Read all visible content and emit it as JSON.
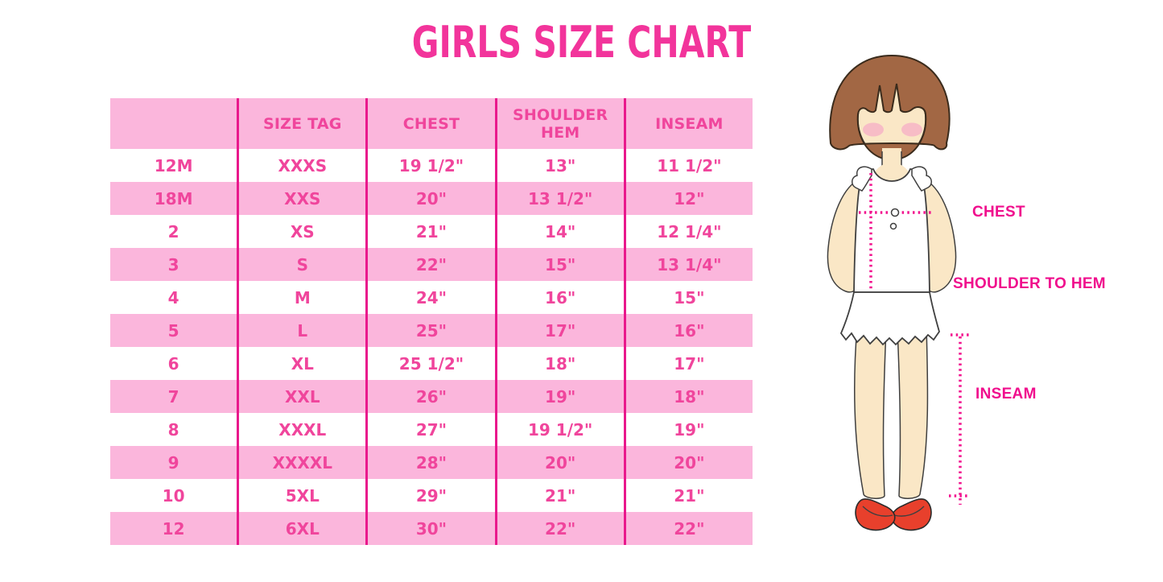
{
  "title": "GIRLS SIZE CHART",
  "chart_data": {
    "type": "table",
    "title": "GIRLS SIZE CHART",
    "columns": [
      "",
      "SIZE TAG",
      "CHEST",
      "SHOULDER HEM",
      "INSEAM"
    ],
    "rows": [
      [
        "12M",
        "XXXS",
        "19 1/2\"",
        "13\"",
        "11 1/2\""
      ],
      [
        "18M",
        "XXS",
        "20\"",
        "13 1/2\"",
        "12\""
      ],
      [
        "2",
        "XS",
        "21\"",
        "14\"",
        "12 1/4\""
      ],
      [
        "3",
        "S",
        "22\"",
        "15\"",
        "13 1/4\""
      ],
      [
        "4",
        "M",
        "24\"",
        "16\"",
        "15\""
      ],
      [
        "5",
        "L",
        "25\"",
        "17\"",
        "16\""
      ],
      [
        "6",
        "XL",
        "25 1/2\"",
        "18\"",
        "17\""
      ],
      [
        "7",
        "XXL",
        "26\"",
        "19\"",
        "18\""
      ],
      [
        "8",
        "XXXL",
        "27\"",
        "19 1/2\"",
        "19\""
      ],
      [
        "9",
        "XXXXL",
        "28\"",
        "20\"",
        "20\""
      ],
      [
        "10",
        "5XL",
        "29\"",
        "21\"",
        "21\""
      ],
      [
        "12",
        "6XL",
        "30\"",
        "22\"",
        "22\""
      ]
    ]
  },
  "figure": {
    "labels": {
      "chest": "CHEST",
      "shoulder_to_hem": "SHOULDER TO HEM",
      "inseam": "INSEAM"
    }
  },
  "colors": {
    "title_pink": "#F2349B",
    "table_text_pink": "#F0459C",
    "row_pink": "#FBB6DC",
    "grid_line_magenta": "#E9188C",
    "label_magenta": "#F00E8D",
    "dotted_line_magenta": "#F2128E",
    "hair_brown": "#A26744",
    "skin": "#FAE7C6",
    "blush_pink": "#F6AEC6",
    "shoe_red": "#E8402C",
    "garment_white": "#FFFFFF"
  }
}
